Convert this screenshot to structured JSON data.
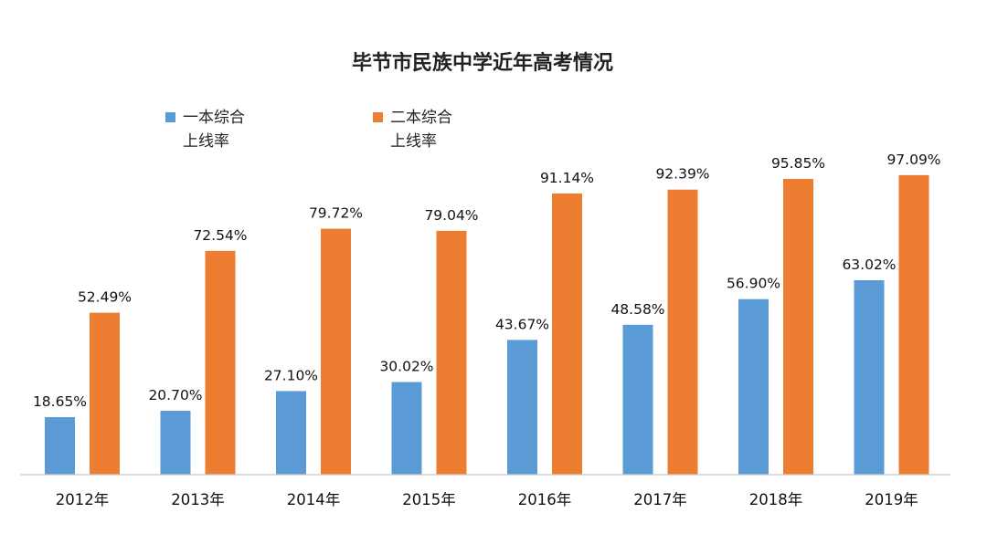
{
  "chart_data": {
    "type": "bar",
    "title": "毕节市民族中学近年高考情况",
    "categories": [
      "2012年",
      "2013年",
      "2014年",
      "2015年",
      "2016年",
      "2017年",
      "2018年",
      "2019年"
    ],
    "series": [
      {
        "name_lines": [
          "一本综合",
          "上线率"
        ],
        "color": "#5B9BD5",
        "values": [
          18.65,
          20.7,
          27.1,
          30.02,
          43.67,
          48.58,
          56.9,
          63.02
        ],
        "labels": [
          "18.65%",
          "20.70%",
          "27.10%",
          "30.02%",
          "43.67%",
          "48.58%",
          "56.90%",
          "63.02%"
        ]
      },
      {
        "name_lines": [
          "二本综合",
          "上线率"
        ],
        "color": "#ED7D31",
        "values": [
          52.49,
          72.54,
          79.72,
          79.04,
          91.14,
          92.39,
          95.85,
          97.09
        ],
        "labels": [
          "52.49%",
          "72.54%",
          "79.72%",
          "79.04%",
          "91.14%",
          "92.39%",
          "95.85%",
          "97.09%"
        ]
      }
    ],
    "ylim": [
      0,
      100
    ],
    "grid": false,
    "legend_position": "top-left",
    "xlabel": "",
    "ylabel": ""
  }
}
